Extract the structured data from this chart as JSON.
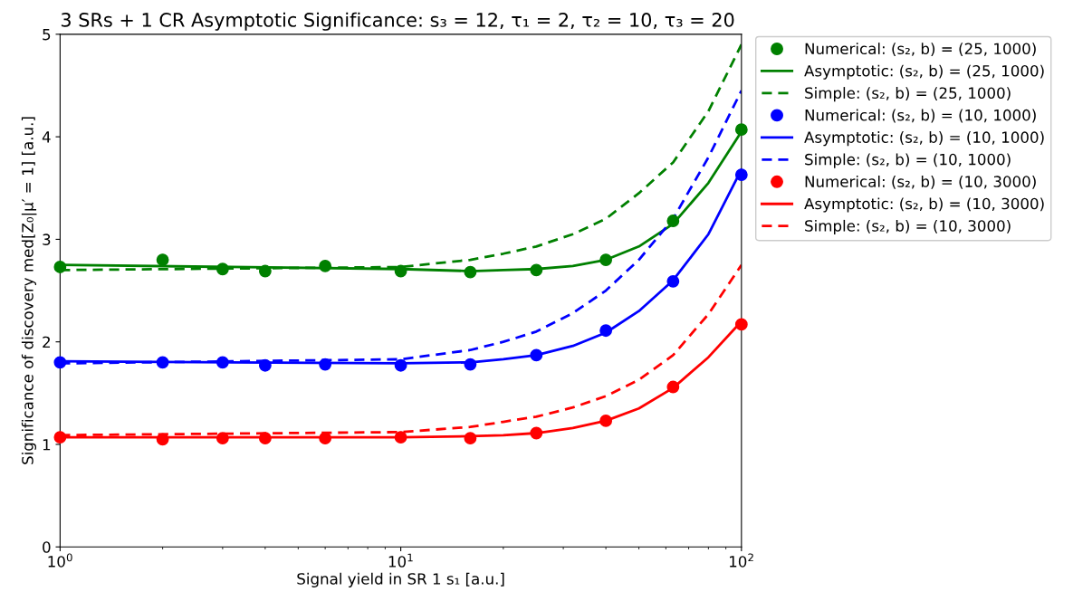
{
  "chart_data": {
    "type": "line",
    "title": "3 SRs + 1 CR Asymptotic Significance: s₃ = 12, τ₁ = 2, τ₂ = 10, τ₃ = 20",
    "xlabel": "Signal yield in SR 1 s₁ [a.u.]",
    "ylabel": "Significance of discovery med[Z₀|μ′ = 1] [a.u.]",
    "log": "x",
    "xlim": [
      1,
      100
    ],
    "xticks": [
      {
        "value": 1,
        "label": "10$^{0}$"
      },
      {
        "value": 10,
        "label": "10$^{1}$"
      },
      {
        "value": 100,
        "label": "10$^{2}$"
      }
    ],
    "ylim": [
      0,
      5
    ],
    "yticks": [
      0,
      1,
      2,
      3,
      4,
      5
    ],
    "legend": "top right",
    "x": [
      1,
      10,
      16,
      20,
      25,
      32,
      40,
      50,
      63,
      80,
      100
    ],
    "series": [
      {
        "name": "Numerical: (s₂, b) = (25, 1000)",
        "type": "scatter",
        "marker": "circle",
        "color": "#008000",
        "x": [
          1,
          2,
          3,
          4,
          6,
          10,
          16,
          25,
          40,
          63,
          100
        ],
        "values": [
          2.73,
          2.8,
          2.71,
          2.69,
          2.74,
          2.69,
          2.68,
          2.7,
          2.8,
          3.18,
          4.07
        ]
      },
      {
        "name": "Asymptotic: (s₂, b) = (25, 1000)",
        "line_style": "solid",
        "color": "#008000",
        "values": [
          2.75,
          2.71,
          2.69,
          2.7,
          2.71,
          2.74,
          2.8,
          2.93,
          3.15,
          3.55,
          4.05
        ]
      },
      {
        "name": "Simple: (s₂, b) = (25, 1000)",
        "line_style": "dashed",
        "color": "#008000",
        "values": [
          2.7,
          2.73,
          2.8,
          2.86,
          2.93,
          3.05,
          3.2,
          3.45,
          3.75,
          4.25,
          4.9
        ]
      },
      {
        "name": "Numerical: (s₂, b) = (10, 1000)",
        "type": "scatter",
        "marker": "circle",
        "color": "#0000ff",
        "x": [
          1,
          2,
          3,
          4,
          6,
          10,
          16,
          25,
          40,
          63,
          100
        ],
        "values": [
          1.8,
          1.8,
          1.8,
          1.77,
          1.78,
          1.77,
          1.78,
          1.87,
          2.11,
          2.59,
          3.63
        ]
      },
      {
        "name": "Asymptotic: (s₂, b) = (10, 1000)",
        "line_style": "solid",
        "color": "#0000ff",
        "values": [
          1.81,
          1.79,
          1.8,
          1.83,
          1.87,
          1.96,
          2.09,
          2.3,
          2.6,
          3.05,
          3.68
        ]
      },
      {
        "name": "Simple: (s₂, b) = (10, 1000)",
        "line_style": "dashed",
        "color": "#0000ff",
        "values": [
          1.79,
          1.83,
          1.92,
          2.0,
          2.1,
          2.28,
          2.5,
          2.8,
          3.2,
          3.8,
          4.45
        ]
      },
      {
        "name": "Numerical: (s₂, b) = (10, 3000)",
        "type": "scatter",
        "marker": "circle",
        "color": "#ff0000",
        "x": [
          1,
          2,
          3,
          4,
          6,
          10,
          16,
          25,
          40,
          63,
          100
        ],
        "values": [
          1.07,
          1.05,
          1.06,
          1.06,
          1.06,
          1.07,
          1.06,
          1.11,
          1.23,
          1.56,
          2.17
        ]
      },
      {
        "name": "Asymptotic: (s₂, b) = (10, 3000)",
        "line_style": "solid",
        "color": "#ff0000",
        "values": [
          1.07,
          1.07,
          1.08,
          1.09,
          1.11,
          1.16,
          1.23,
          1.35,
          1.55,
          1.85,
          2.2
        ]
      },
      {
        "name": "Simple: (s₂, b) = (10, 3000)",
        "line_style": "dashed",
        "color": "#ff0000",
        "values": [
          1.09,
          1.12,
          1.17,
          1.22,
          1.27,
          1.36,
          1.47,
          1.63,
          1.87,
          2.27,
          2.75
        ]
      }
    ]
  }
}
